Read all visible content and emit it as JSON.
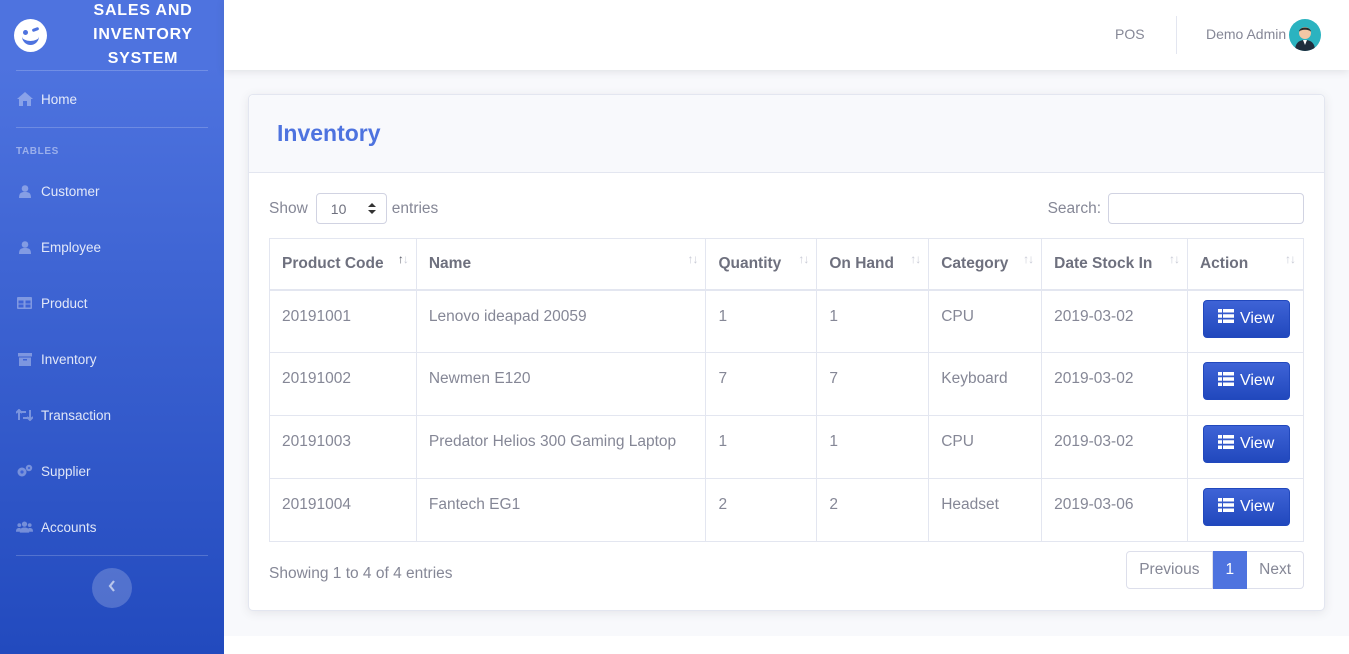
{
  "brand": {
    "lines": [
      "SALES AND",
      "INVENTORY",
      "SYSTEM"
    ]
  },
  "sidebar": {
    "home": "Home",
    "section_heading": "TABLES",
    "items": [
      {
        "label": "Customer",
        "icon": "user-icon"
      },
      {
        "label": "Employee",
        "icon": "user-icon"
      },
      {
        "label": "Product",
        "icon": "table-icon"
      },
      {
        "label": "Inventory",
        "icon": "archive-icon"
      },
      {
        "label": "Transaction",
        "icon": "retweet-icon"
      },
      {
        "label": "Supplier",
        "icon": "cogs-icon"
      },
      {
        "label": "Accounts",
        "icon": "users-icon"
      }
    ]
  },
  "topbar": {
    "pos": "POS",
    "user_name": "Demo Admin"
  },
  "card": {
    "title": "Inventory"
  },
  "controls": {
    "show_label": "Show",
    "entries_value": "10",
    "entries_label": "entries",
    "search_label": "Search:"
  },
  "table": {
    "columns": [
      "Product Code",
      "Name",
      "Quantity",
      "On Hand",
      "Category",
      "Date Stock In",
      "Action"
    ],
    "rows": [
      {
        "code": "20191001",
        "name": "Lenovo ideapad 20059",
        "quantity": "1",
        "on_hand": "1",
        "category": "CPU",
        "date": "2019-03-02",
        "action": "View"
      },
      {
        "code": "20191002",
        "name": "Newmen E120",
        "quantity": "7",
        "on_hand": "7",
        "category": "Keyboard",
        "date": "2019-03-02",
        "action": "View"
      },
      {
        "code": "20191003",
        "name": "Predator Helios 300 Gaming Laptop",
        "quantity": "1",
        "on_hand": "1",
        "category": "CPU",
        "date": "2019-03-02",
        "action": "View"
      },
      {
        "code": "20191004",
        "name": "Fantech EG1",
        "quantity": "2",
        "on_hand": "2",
        "category": "Headset",
        "date": "2019-03-06",
        "action": "View"
      }
    ]
  },
  "footer": {
    "info": "Showing 1 to 4 of 4 entries",
    "previous": "Previous",
    "page": "1",
    "next": "Next"
  },
  "colors": {
    "primary": "#4e73df",
    "sidebar_bottom": "#224abe",
    "text": "#858796"
  }
}
